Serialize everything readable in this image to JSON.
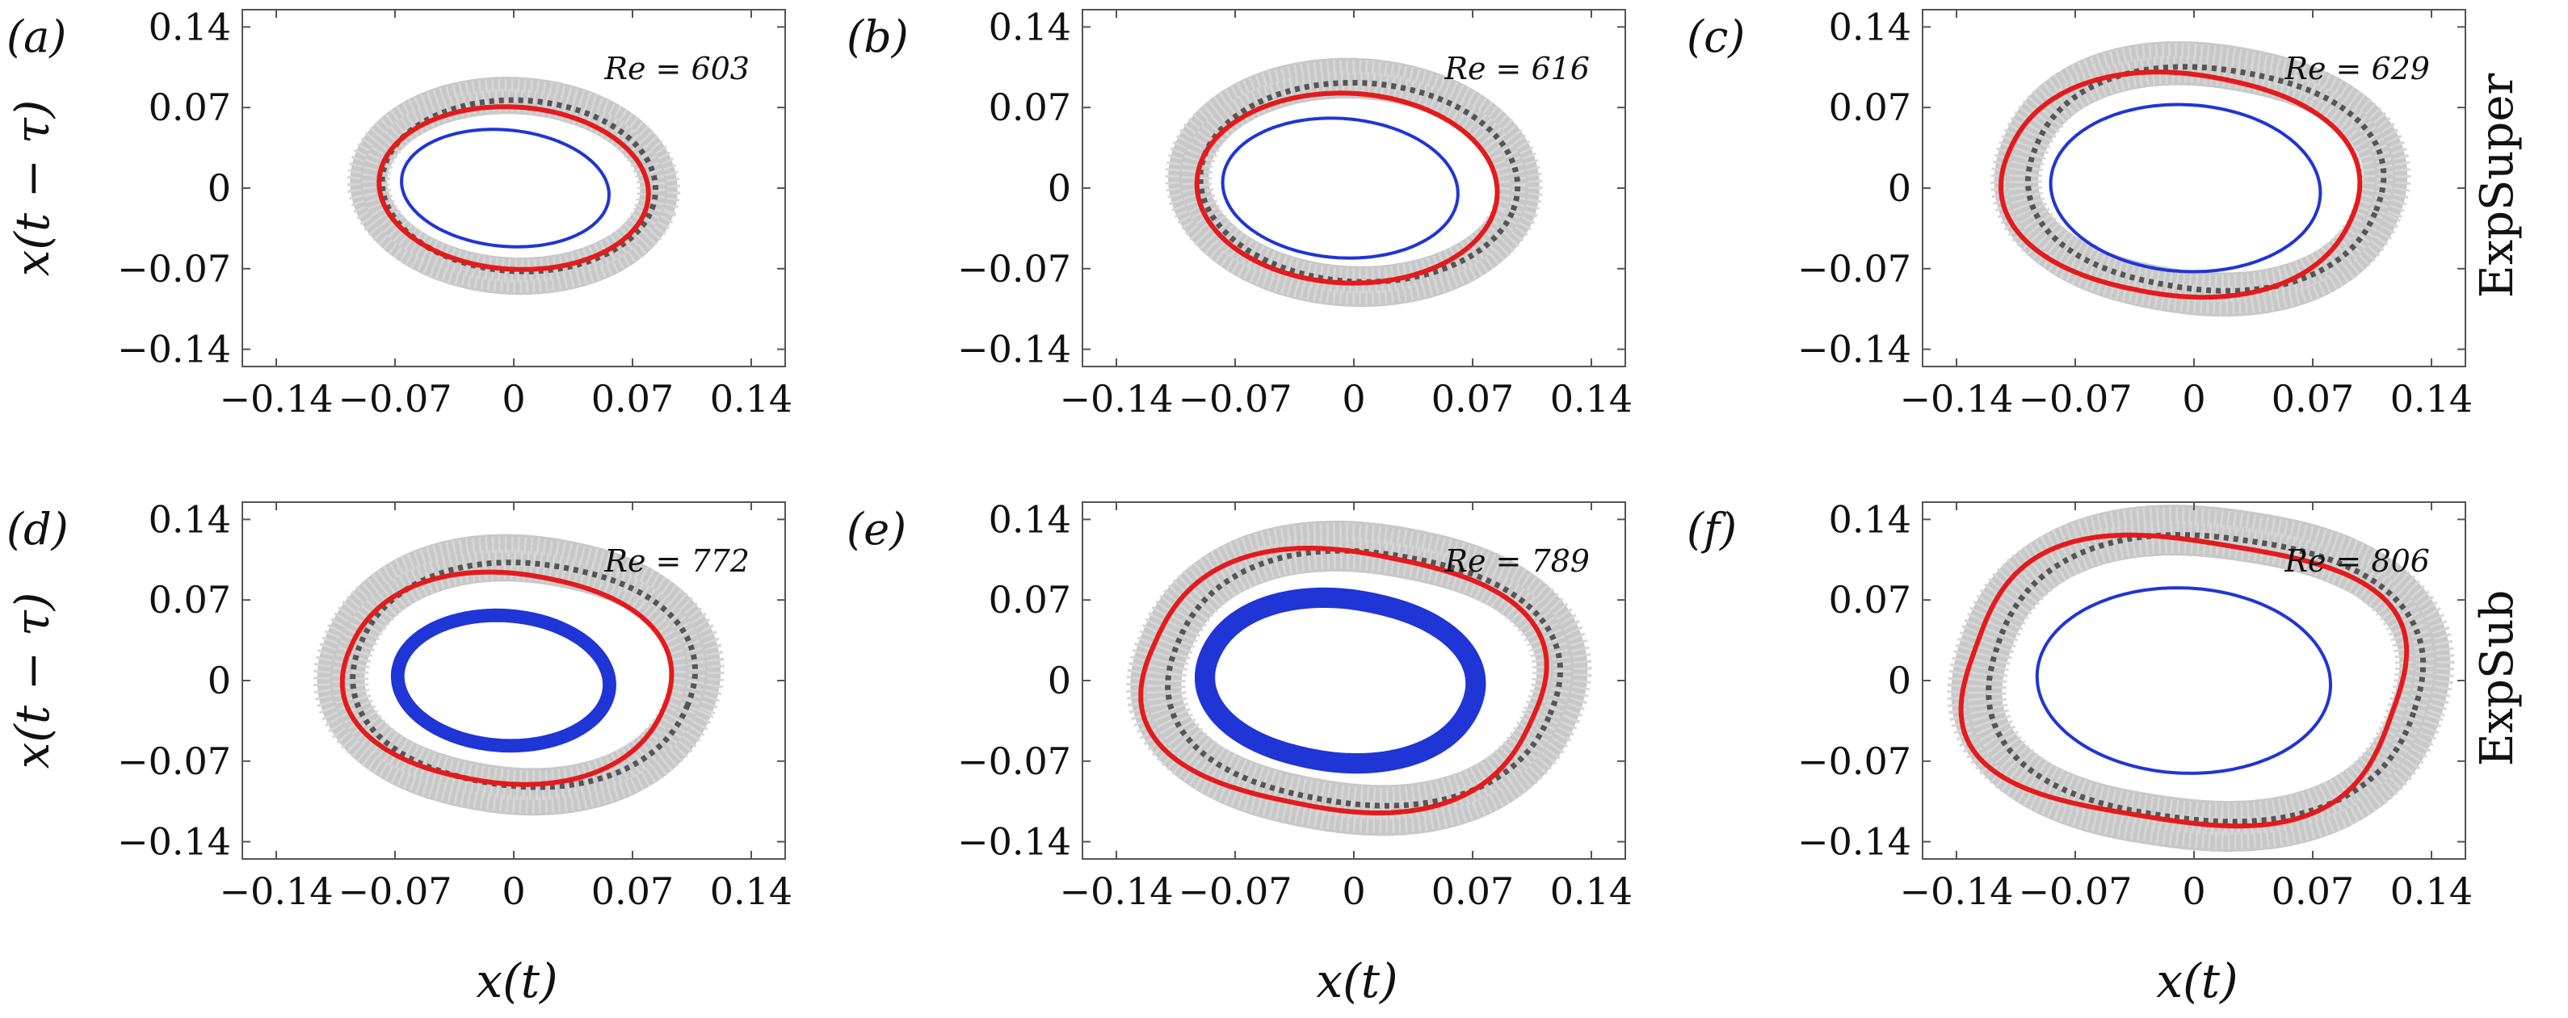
{
  "figure": {
    "xlabel": "x(t)",
    "ylabel": "x(t − τ)",
    "row_labels": [
      "ExpSuper",
      "ExpSub"
    ]
  },
  "chart_data": [
    {
      "type": "line",
      "panel": "(a)",
      "annotation": "Re = 603",
      "xlabel": "x(t)",
      "ylabel": "x(t − τ)",
      "xlim": [
        -0.16,
        0.16
      ],
      "ylim": [
        -0.155,
        0.155
      ],
      "xticks": [
        -0.14,
        -0.07,
        0,
        0.07,
        0.14
      ],
      "yticks": [
        -0.14,
        -0.07,
        0,
        0.07,
        0.14
      ],
      "xtick_labels": [
        "−0.14",
        "−0.07",
        "0",
        "0.07",
        "0.14"
      ],
      "ytick_labels": [
        "−0.14",
        "−0.07",
        "0",
        "0.07",
        "0.14"
      ],
      "series": [
        {
          "name": "experiment cloud",
          "color": "#c8c8c8",
          "style": "band",
          "cx": 0.0,
          "cy": 0.002,
          "rx": 0.086,
          "ry": 0.078,
          "tilt": 0.25,
          "rect": 0.0,
          "band_width": 0.022
        },
        {
          "name": "dotted orbit",
          "color": "#555555",
          "style": "dotted",
          "cx": 0.003,
          "cy": 0.002,
          "rx": 0.081,
          "ry": 0.074,
          "tilt": 0.25,
          "rect": 0.0
        },
        {
          "name": "red orbit",
          "color": "#e41a1c",
          "style": "solid-thick",
          "cx": 0.0,
          "cy": 0.0,
          "rx": 0.08,
          "ry": 0.07,
          "tilt": 0.26,
          "rect": 0.0
        },
        {
          "name": "blue orbit",
          "color": "#1f35d6",
          "style": "solid",
          "cx": -0.005,
          "cy": 0.0,
          "rx": 0.062,
          "ry": 0.05,
          "tilt": 0.28,
          "rect": 0.0,
          "band_width": 0
        }
      ]
    },
    {
      "type": "line",
      "panel": "(b)",
      "annotation": "Re = 616",
      "xlabel": "x(t)",
      "ylabel": "x(t − τ)",
      "xlim": [
        -0.16,
        0.16
      ],
      "ylim": [
        -0.155,
        0.155
      ],
      "xticks": [
        -0.14,
        -0.07,
        0,
        0.07,
        0.14
      ],
      "yticks": [
        -0.14,
        -0.07,
        0,
        0.07,
        0.14
      ],
      "xtick_labels": [
        "−0.14",
        "−0.07",
        "0",
        "0.07",
        "0.14"
      ],
      "ytick_labels": [
        "−0.14",
        "−0.07",
        "0",
        "0.07",
        "0.14"
      ],
      "series": [
        {
          "name": "experiment cloud",
          "color": "#c8c8c8",
          "style": "band",
          "cx": 0.0,
          "cy": 0.005,
          "rx": 0.098,
          "ry": 0.09,
          "tilt": 0.26,
          "rect": 0.0,
          "band_width": 0.024
        },
        {
          "name": "dotted orbit",
          "color": "#555555",
          "style": "dotted",
          "cx": 0.003,
          "cy": 0.005,
          "rx": 0.094,
          "ry": 0.086,
          "tilt": 0.26,
          "rect": 0.0
        },
        {
          "name": "red orbit",
          "color": "#e41a1c",
          "style": "solid-thick",
          "cx": -0.004,
          "cy": 0.0,
          "rx": 0.089,
          "ry": 0.082,
          "tilt": 0.27,
          "rect": 0.0
        },
        {
          "name": "blue orbit",
          "color": "#1f35d6",
          "style": "solid",
          "cx": -0.008,
          "cy": 0.0,
          "rx": 0.07,
          "ry": 0.06,
          "tilt": 0.27,
          "rect": 0.0,
          "band_width": 0
        }
      ]
    },
    {
      "type": "line",
      "panel": "(c)",
      "annotation": "Re = 629",
      "xlabel": "x(t)",
      "ylabel": "x(t − τ)",
      "xlim": [
        -0.16,
        0.16
      ],
      "ylim": [
        -0.155,
        0.155
      ],
      "xticks": [
        -0.14,
        -0.07,
        0,
        0.07,
        0.14
      ],
      "yticks": [
        -0.14,
        -0.07,
        0,
        0.07,
        0.14
      ],
      "xtick_labels": [
        "−0.14",
        "−0.07",
        "0",
        "0.07",
        "0.14"
      ],
      "ytick_labels": [
        "−0.14",
        "−0.07",
        "0",
        "0.07",
        "0.14"
      ],
      "series": [
        {
          "name": "experiment cloud",
          "color": "#c8c8c8",
          "style": "band",
          "cx": 0.004,
          "cy": 0.008,
          "rx": 0.108,
          "ry": 0.098,
          "tilt": 0.27,
          "rect": 0.1,
          "band_width": 0.026
        },
        {
          "name": "dotted orbit",
          "color": "#555555",
          "style": "dotted",
          "cx": 0.007,
          "cy": 0.008,
          "rx": 0.104,
          "ry": 0.095,
          "tilt": 0.27,
          "rect": 0.1
        },
        {
          "name": "red orbit",
          "color": "#e41a1c",
          "style": "solid-thick",
          "cx": -0.008,
          "cy": 0.003,
          "rx": 0.105,
          "ry": 0.095,
          "tilt": 0.3,
          "rect": 0.1
        },
        {
          "name": "blue orbit",
          "color": "#1f35d6",
          "style": "solid",
          "cx": -0.005,
          "cy": 0.0,
          "rx": 0.08,
          "ry": 0.072,
          "tilt": 0.27,
          "rect": 0.0,
          "band_width": 0
        }
      ]
    },
    {
      "type": "line",
      "panel": "(d)",
      "annotation": "Re = 772",
      "xlabel": "x(t)",
      "ylabel": "x(t − τ)",
      "xlim": [
        -0.16,
        0.16
      ],
      "ylim": [
        -0.155,
        0.155
      ],
      "xticks": [
        -0.14,
        -0.07,
        0,
        0.07,
        0.14
      ],
      "yticks": [
        -0.14,
        -0.07,
        0,
        0.07,
        0.14
      ],
      "xtick_labels": [
        "−0.14",
        "−0.07",
        "0",
        "0.07",
        "0.14"
      ],
      "ytick_labels": [
        "−0.14",
        "−0.07",
        "0",
        "0.07",
        "0.14"
      ],
      "series": [
        {
          "name": "experiment cloud",
          "color": "#c8c8c8",
          "style": "band",
          "cx": 0.003,
          "cy": 0.005,
          "rx": 0.104,
          "ry": 0.1,
          "tilt": 0.28,
          "rect": 0.08,
          "band_width": 0.028
        },
        {
          "name": "dotted orbit",
          "color": "#555555",
          "style": "dotted",
          "cx": 0.006,
          "cy": 0.005,
          "rx": 0.1,
          "ry": 0.096,
          "tilt": 0.28,
          "rect": 0.08
        },
        {
          "name": "red orbit",
          "color": "#e41a1c",
          "style": "solid-thick",
          "cx": -0.004,
          "cy": 0.002,
          "rx": 0.096,
          "ry": 0.09,
          "tilt": 0.3,
          "rect": 0.1
        },
        {
          "name": "blue orbit",
          "color": "#1f35d6",
          "style": "band-blue",
          "cx": -0.006,
          "cy": 0.0,
          "rx": 0.063,
          "ry": 0.056,
          "tilt": 0.3,
          "rect": 0.0,
          "band_width": 0.008
        }
      ]
    },
    {
      "type": "line",
      "panel": "(e)",
      "annotation": "Re = 789",
      "xlabel": "x(t)",
      "ylabel": "x(t − τ)",
      "xlim": [
        -0.16,
        0.16
      ],
      "ylim": [
        -0.155,
        0.155
      ],
      "xticks": [
        -0.14,
        -0.07,
        0,
        0.07,
        0.14
      ],
      "yticks": [
        -0.14,
        -0.07,
        0,
        0.07,
        0.14
      ],
      "xtick_labels": [
        "−0.14",
        "−0.07",
        "0",
        "0.07",
        "0.14"
      ],
      "ytick_labels": [
        "−0.14",
        "−0.07",
        "0",
        "0.07",
        "0.14"
      ],
      "series": [
        {
          "name": "experiment cloud",
          "color": "#c8c8c8",
          "style": "band",
          "cx": 0.003,
          "cy": 0.002,
          "rx": 0.118,
          "ry": 0.112,
          "tilt": 0.28,
          "rect": 0.12,
          "band_width": 0.03
        },
        {
          "name": "dotted orbit",
          "color": "#555555",
          "style": "dotted",
          "cx": 0.006,
          "cy": 0.002,
          "rx": 0.114,
          "ry": 0.108,
          "tilt": 0.28,
          "rect": 0.12
        },
        {
          "name": "red orbit",
          "color": "#e41a1c",
          "style": "solid-thick",
          "cx": -0.006,
          "cy": 0.0,
          "rx": 0.116,
          "ry": 0.11,
          "tilt": 0.3,
          "rect": 0.2
        },
        {
          "name": "blue orbit",
          "color": "#1f35d6",
          "style": "band-blue",
          "cx": -0.008,
          "cy": 0.0,
          "rx": 0.08,
          "ry": 0.07,
          "tilt": 0.32,
          "rect": 0.06,
          "band_width": 0.012
        }
      ]
    },
    {
      "type": "line",
      "panel": "(f)",
      "annotation": "Re = 806",
      "xlabel": "x(t)",
      "ylabel": "x(t − τ)",
      "xlim": [
        -0.16,
        0.16
      ],
      "ylim": [
        -0.155,
        0.155
      ],
      "xticks": [
        -0.14,
        -0.07,
        0,
        0.07,
        0.14
      ],
      "yticks": [
        -0.14,
        -0.07,
        0,
        0.07,
        0.14
      ],
      "xtick_labels": [
        "−0.14",
        "−0.07",
        "0",
        "0.07",
        "0.14"
      ],
      "ytick_labels": [
        "−0.14",
        "−0.07",
        "0",
        "0.07",
        "0.14"
      ],
      "series": [
        {
          "name": "experiment cloud",
          "color": "#c8c8c8",
          "style": "band",
          "cx": 0.004,
          "cy": 0.002,
          "rx": 0.13,
          "ry": 0.126,
          "tilt": 0.22,
          "rect": 0.15,
          "band_width": 0.03
        },
        {
          "name": "dotted orbit",
          "color": "#555555",
          "style": "dotted",
          "cx": 0.007,
          "cy": 0.002,
          "rx": 0.126,
          "ry": 0.122,
          "tilt": 0.22,
          "rect": 0.15
        },
        {
          "name": "red orbit",
          "color": "#e41a1c",
          "style": "solid-thick",
          "cx": -0.006,
          "cy": 0.0,
          "rx": 0.126,
          "ry": 0.12,
          "tilt": 0.24,
          "rect": 0.3
        },
        {
          "name": "blue orbit",
          "color": "#1f35d6",
          "style": "solid",
          "cx": -0.006,
          "cy": 0.0,
          "rx": 0.087,
          "ry": 0.08,
          "tilt": 0.28,
          "rect": 0.0,
          "band_width": 0
        }
      ]
    }
  ]
}
